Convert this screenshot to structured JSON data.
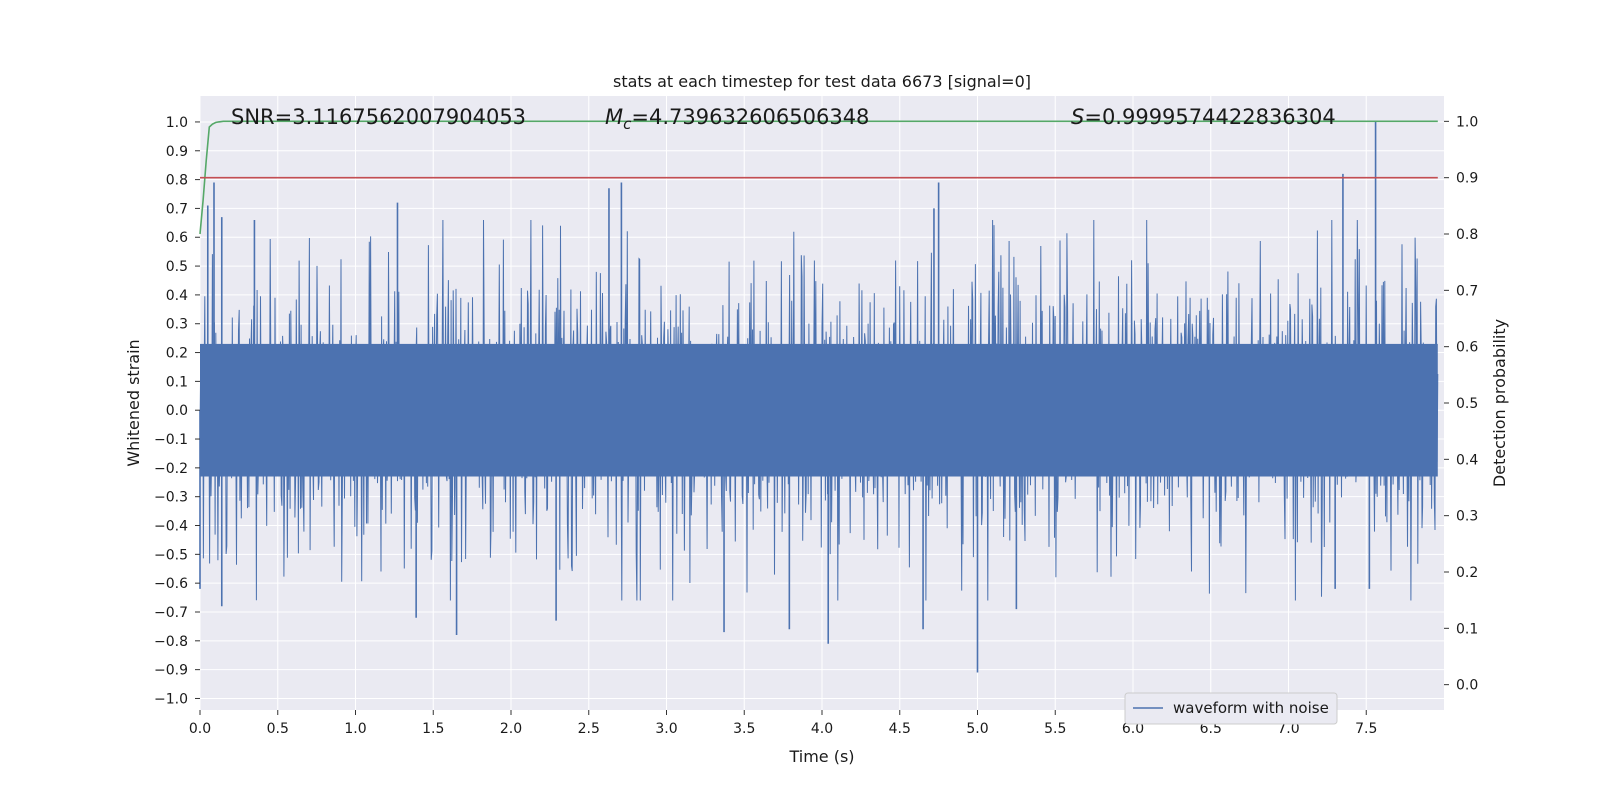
{
  "chart_data": {
    "type": "line",
    "title": "stats at each timestep for test data 6673 [signal=0]",
    "xlabel": "Time (s)",
    "ylabel_left": "Whitened strain",
    "ylabel_right": "Detection probability",
    "xlim": [
      0.0,
      8.0
    ],
    "ylim_left": [
      -1.04,
      1.09
    ],
    "ylim_right": [
      -0.045,
      1.045
    ],
    "x_ticks": [
      "0.0",
      "0.5",
      "1.0",
      "1.5",
      "2.0",
      "2.5",
      "3.0",
      "3.5",
      "4.0",
      "4.5",
      "5.0",
      "5.5",
      "6.0",
      "6.5",
      "7.0",
      "7.5"
    ],
    "y_left_ticks": [
      "1.0",
      "0.9",
      "0.8",
      "0.7",
      "0.6",
      "0.5",
      "0.4",
      "0.3",
      "0.2",
      "0.1",
      "0.0",
      "−0.1",
      "−0.2",
      "−0.3",
      "−0.4",
      "−0.5",
      "−0.6",
      "−0.7",
      "−0.8",
      "−0.9",
      "−1.0"
    ],
    "y_right_ticks": [
      "1.0",
      "0.9",
      "0.8",
      "0.7",
      "0.6",
      "0.5",
      "0.4",
      "0.3",
      "0.2",
      "0.1",
      "0.0"
    ],
    "grid": true,
    "legend_position": "bottom-right",
    "annotations": {
      "snr": "SNR=3.1167562007904053",
      "mc_symbol": "M",
      "mc_sub": "c",
      "mc_value": "=4.739632606506348",
      "s_symbol": "S",
      "s_value": "=0.9999574422836304"
    },
    "series": [
      {
        "name": "waveform with noise",
        "axis": "left",
        "color": "#4c72b0",
        "x_range": [
          0.0,
          7.96
        ],
        "typical_envelope": [
          -0.42,
          0.42
        ],
        "peaks": [
          {
            "x": 0.05,
            "y": 0.71
          },
          {
            "x": 0.09,
            "y": 0.79
          },
          {
            "x": 0.14,
            "y": 0.67
          },
          {
            "x": 0.35,
            "y": 0.66
          },
          {
            "x": 1.27,
            "y": 0.72
          },
          {
            "x": 2.63,
            "y": 0.77
          },
          {
            "x": 2.71,
            "y": 0.79
          },
          {
            "x": 4.72,
            "y": 0.7
          },
          {
            "x": 4.75,
            "y": 0.79
          },
          {
            "x": 7.35,
            "y": 0.82
          },
          {
            "x": 7.56,
            "y": 1.0
          }
        ],
        "troughs": [
          {
            "x": 0.0,
            "y": -0.62
          },
          {
            "x": 0.14,
            "y": -0.68
          },
          {
            "x": 1.39,
            "y": -0.72
          },
          {
            "x": 1.65,
            "y": -0.78
          },
          {
            "x": 2.29,
            "y": -0.73
          },
          {
            "x": 3.37,
            "y": -0.77
          },
          {
            "x": 3.79,
            "y": -0.76
          },
          {
            "x": 4.04,
            "y": -0.81
          },
          {
            "x": 4.65,
            "y": -0.76
          },
          {
            "x": 5.0,
            "y": -0.91
          },
          {
            "x": 5.25,
            "y": -0.69
          },
          {
            "x": 7.3,
            "y": -0.62
          },
          {
            "x": 7.52,
            "y": -0.62
          }
        ]
      },
      {
        "name": "",
        "axis": "right",
        "color": "#55a868",
        "x": [
          0.0,
          0.02,
          0.04,
          0.06,
          0.08,
          0.1,
          0.12,
          0.15,
          0.2,
          1.0,
          2.0,
          3.0,
          4.0,
          5.0,
          6.0,
          7.0,
          7.96
        ],
        "y": [
          0.8,
          0.86,
          0.93,
          0.99,
          0.995,
          0.998,
          0.999,
          1.0,
          1.0,
          1.0,
          1.0,
          1.0,
          1.0,
          1.0,
          1.0,
          1.0,
          1.0
        ]
      },
      {
        "name": "",
        "axis": "right",
        "color": "#c44e52",
        "x": [
          0.0,
          7.96
        ],
        "y": [
          0.9,
          0.9
        ]
      }
    ]
  }
}
